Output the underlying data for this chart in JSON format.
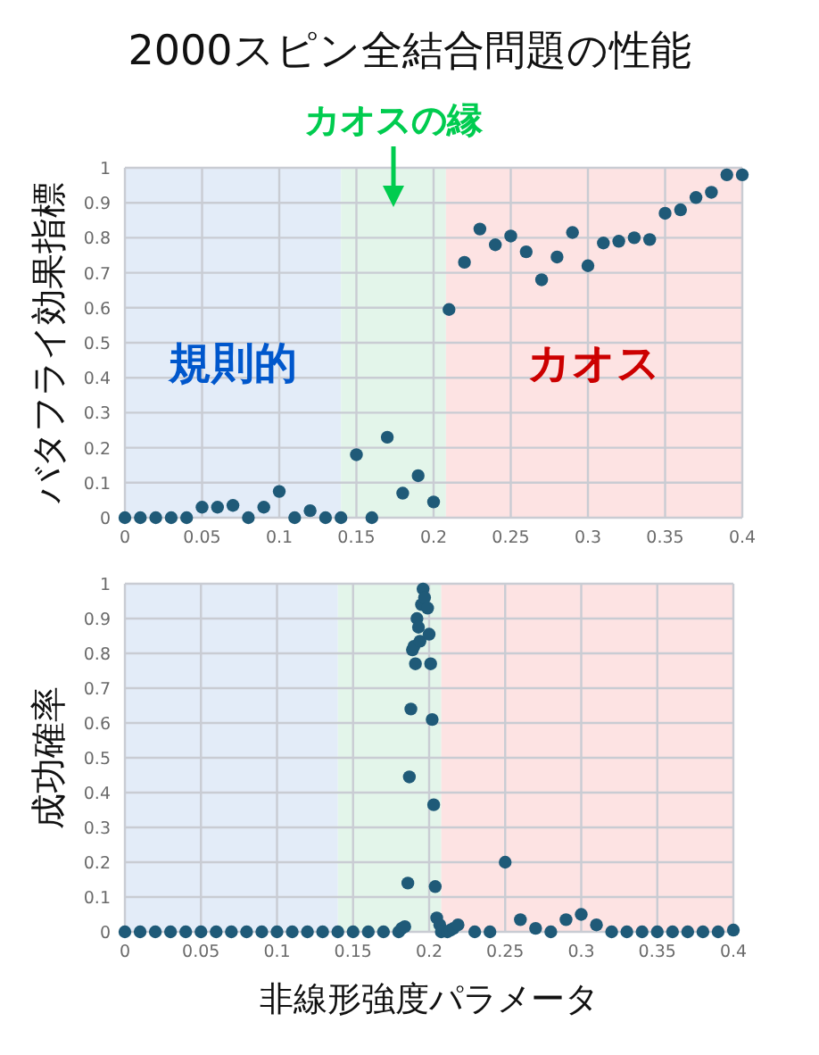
{
  "chart_data": [
    {
      "type": "scatter",
      "title": "2000スピン全結合問題の性能",
      "ylabel": "バタフライ効果指標",
      "x": [
        0,
        0.01,
        0.02,
        0.03,
        0.04,
        0.05,
        0.06,
        0.07,
        0.08,
        0.09,
        0.1,
        0.11,
        0.12,
        0.13,
        0.14,
        0.15,
        0.16,
        0.17,
        0.18,
        0.19,
        0.2,
        0.21,
        0.22,
        0.23,
        0.24,
        0.25,
        0.26,
        0.27,
        0.28,
        0.29,
        0.3,
        0.31,
        0.32,
        0.33,
        0.34,
        0.35,
        0.36,
        0.37,
        0.38,
        0.39,
        0.4
      ],
      "series": [
        {
          "color": "#1f5a78",
          "values": [
            0,
            0,
            0,
            0,
            0,
            0.03,
            0.03,
            0.035,
            0,
            0.03,
            0.075,
            0,
            0.02,
            0,
            0,
            0.18,
            0,
            0.23,
            0.07,
            0.12,
            0.045,
            0.595,
            0.73,
            0.825,
            0.78,
            0.805,
            0.76,
            0.68,
            0.745,
            0.815,
            0.72,
            0.785,
            0.79,
            0.8,
            0.795,
            0.87,
            0.88,
            0.915,
            0.93,
            0.98,
            0.98
          ]
        }
      ],
      "xlim": [
        0,
        0.4
      ],
      "xticks": [
        0,
        0.05,
        0.1,
        0.15,
        0.2,
        0.25,
        0.3,
        0.35,
        0.4
      ],
      "ylim": [
        0,
        1
      ],
      "yticks": [
        0,
        0.1,
        0.2,
        0.3,
        0.4,
        0.5,
        0.6,
        0.7,
        0.8,
        0.9,
        1
      ],
      "bands": [
        {
          "axis": "x",
          "from": 0,
          "to": 0.14,
          "label": "規則的",
          "color": "#e3ecf8"
        },
        {
          "axis": "x",
          "from": 0.14,
          "to": 0.208,
          "label": "カオスの縁",
          "color": "#e3f5ea"
        },
        {
          "axis": "x",
          "from": 0.208,
          "to": 0.4,
          "label": "カオス",
          "color": "#fde3e3"
        }
      ],
      "grid": true,
      "marker": "circle"
    },
    {
      "type": "scatter",
      "xlabel": "非線形強度パラメータ",
      "ylabel": "成功確率",
      "x": [
        0,
        0.01,
        0.02,
        0.03,
        0.04,
        0.05,
        0.06,
        0.07,
        0.08,
        0.09,
        0.1,
        0.11,
        0.12,
        0.13,
        0.14,
        0.15,
        0.16,
        0.17,
        0.18,
        0.182,
        0.184,
        0.186,
        0.187,
        0.188,
        0.189,
        0.19,
        0.191,
        0.192,
        0.193,
        0.194,
        0.195,
        0.196,
        0.197,
        0.199,
        0.2,
        0.201,
        0.202,
        0.203,
        0.204,
        0.205,
        0.207,
        0.208,
        0.212,
        0.214,
        0.216,
        0.219,
        0.23,
        0.24,
        0.25,
        0.26,
        0.27,
        0.28,
        0.29,
        0.3,
        0.31,
        0.32,
        0.33,
        0.34,
        0.35,
        0.36,
        0.37,
        0.38,
        0.39,
        0.4
      ],
      "series": [
        {
          "color": "#1f5a78",
          "values": [
            0,
            0,
            0,
            0,
            0,
            0,
            0,
            0,
            0,
            0,
            0,
            0,
            0,
            0,
            0,
            0,
            0,
            0,
            0,
            0.01,
            0.015,
            0.14,
            0.445,
            0.64,
            0.81,
            0.82,
            0.77,
            0.9,
            0.875,
            0.835,
            0.94,
            0.985,
            0.96,
            0.93,
            0.855,
            0.77,
            0.61,
            0.365,
            0.13,
            0.04,
            0.02,
            0,
            0,
            0.005,
            0.01,
            0.02,
            0,
            0,
            0.2,
            0.035,
            0.01,
            0,
            0.035,
            0.05,
            0.02,
            0,
            0,
            0,
            0,
            0,
            0,
            0,
            0,
            0.005
          ]
        }
      ],
      "xlim": [
        0,
        0.4
      ],
      "xticks": [
        0,
        0.05,
        0.1,
        0.15,
        0.2,
        0.25,
        0.3,
        0.35,
        0.4
      ],
      "ylim": [
        0,
        1
      ],
      "yticks": [
        0,
        0.1,
        0.2,
        0.3,
        0.4,
        0.5,
        0.6,
        0.7,
        0.8,
        0.9,
        1
      ],
      "bands": [
        {
          "axis": "x",
          "from": 0,
          "to": 0.14,
          "color": "#e3ecf8"
        },
        {
          "axis": "x",
          "from": 0.14,
          "to": 0.208,
          "color": "#e3f5ea"
        },
        {
          "axis": "x",
          "from": 0.208,
          "to": 0.4,
          "color": "#fde3e3"
        }
      ],
      "grid": true,
      "marker": "circle"
    }
  ]
}
